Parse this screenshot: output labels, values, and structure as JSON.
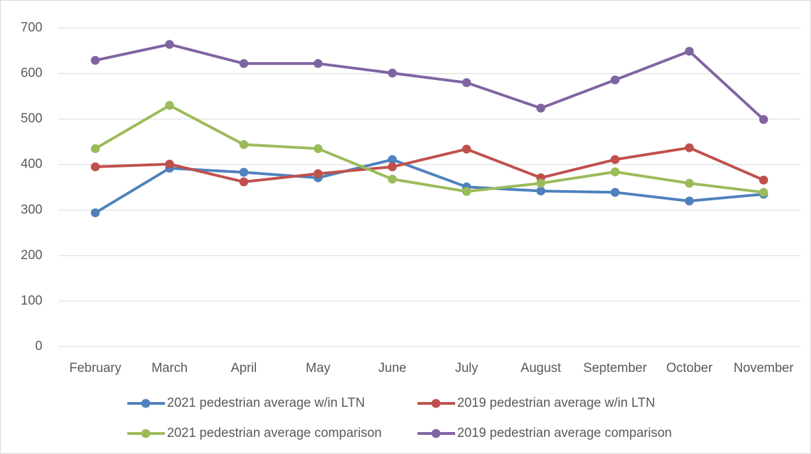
{
  "chart_data": {
    "type": "line",
    "categories": [
      "February",
      "March",
      "April",
      "May",
      "June",
      "July",
      "August",
      "September",
      "October",
      "November"
    ],
    "series": [
      {
        "name": "2021 pedestrian average w/in LTN",
        "color": "#4f81bd",
        "values": [
          294,
          392,
          383,
          371,
          411,
          351,
          342,
          339,
          320,
          335
        ]
      },
      {
        "name": "2019 pedestrian average w/in LTN",
        "color": "#c0504d",
        "values": [
          395,
          401,
          362,
          380,
          395,
          434,
          371,
          411,
          437,
          366
        ]
      },
      {
        "name": "2021 pedestrian average comparison",
        "color": "#9bbb59",
        "values": [
          435,
          530,
          444,
          435,
          368,
          341,
          359,
          384,
          359,
          339
        ]
      },
      {
        "name": "2019 pedestrian average comparison",
        "color": "#8064a2",
        "values": [
          629,
          664,
          622,
          622,
          601,
          580,
          524,
          586,
          649,
          499
        ]
      }
    ],
    "ylim": [
      0,
      700
    ],
    "yticks": [
      0,
      100,
      200,
      300,
      400,
      500,
      600,
      700
    ],
    "grid": true,
    "legend": "bottom"
  }
}
